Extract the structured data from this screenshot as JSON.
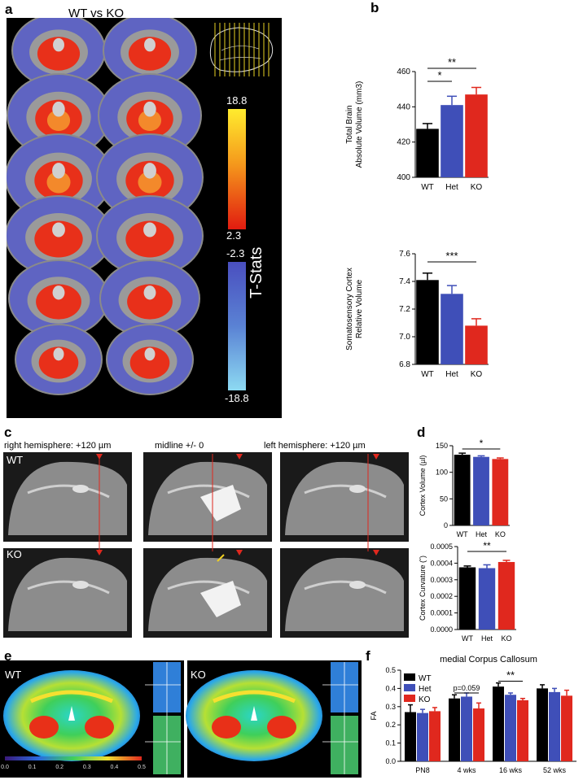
{
  "labels": {
    "a": "a",
    "b": "b",
    "c": "c",
    "d": "d",
    "e": "e",
    "f": "f"
  },
  "panel_a": {
    "title": "WT vs KO",
    "colorbar": {
      "max_pos": "18.8",
      "min_pos": "2.3",
      "max_neg": "-2.3",
      "min_neg": "-18.8",
      "axis_label": "T-Stats"
    },
    "colors": {
      "positive": "#e8301a",
      "negative": "#5a5fc8",
      "high": "#ffe82a",
      "low_neg": "#7fd4f0"
    }
  },
  "panel_c": {
    "col_titles": [
      "right hemisphere: +120 µm",
      "midline +/- 0",
      "left hemisphere: +120 µm"
    ],
    "row_labels": [
      "WT",
      "KO"
    ]
  },
  "panel_e": {
    "left_label": "WT",
    "right_label": "KO",
    "scale_ticks": [
      "0.0",
      "0.1",
      "0.2",
      "0.3",
      "0.4",
      "0.5"
    ]
  },
  "series_colors": {
    "WT": "#000000",
    "Het": "#3f4fb8",
    "KO": "#e0281e"
  },
  "chart_data": [
    {
      "id": "b1",
      "type": "bar",
      "categories": [
        "WT",
        "Het",
        "KO"
      ],
      "values": [
        427.5,
        441,
        447
      ],
      "errors": [
        3,
        5,
        4
      ],
      "ylabel": "Total Brain\nAbsolute Volume (mm3)",
      "ylim": [
        400,
        460
      ],
      "yticks": [
        "400",
        "420",
        "440",
        "460"
      ],
      "annotations": [
        {
          "from": 0,
          "to": 2,
          "text": "**"
        },
        {
          "from": 0,
          "to": 1,
          "text": "*"
        }
      ]
    },
    {
      "id": "b2",
      "type": "bar",
      "categories": [
        "WT",
        "Het",
        "KO"
      ],
      "values": [
        7.41,
        7.31,
        7.08
      ],
      "errors": [
        0.05,
        0.06,
        0.05
      ],
      "ylabel": "Somatosensory Cortex\nRelative Volume",
      "ylim": [
        6.8,
        7.6
      ],
      "yticks": [
        "6.8",
        "7.0",
        "7.2",
        "7.4",
        "7.6"
      ],
      "annotations": [
        {
          "from": 0,
          "to": 2,
          "text": "***"
        }
      ]
    },
    {
      "id": "d1",
      "type": "bar",
      "categories": [
        "WT",
        "Het",
        "KO"
      ],
      "values": [
        133,
        129,
        125
      ],
      "errors": [
        3,
        2,
        2
      ],
      "ylabel": "Cortex Volume (µl)",
      "ylim": [
        0,
        150
      ],
      "yticks": [
        "0",
        "50",
        "100",
        "150"
      ],
      "annotations": [
        {
          "from": 0,
          "to": 2,
          "text": "*"
        }
      ]
    },
    {
      "id": "d2",
      "type": "bar",
      "categories": [
        "WT",
        "Het",
        "KO"
      ],
      "values": [
        0.000375,
        0.00037,
        0.000407
      ],
      "errors": [
        8e-06,
        2e-05,
        1e-05
      ],
      "ylabel": "Cortex Curvature (˘)",
      "ylim": [
        0,
        0.0005
      ],
      "yticks": [
        "0.0000",
        "0.0001",
        "0.0002",
        "0.0003",
        "0.0004",
        "0.0005"
      ],
      "annotations": [
        {
          "from": 0,
          "to": 2,
          "text": "**"
        }
      ]
    },
    {
      "id": "f",
      "type": "bar",
      "title": "medial Corpus Callosum",
      "categories": [
        "PN8",
        "4 wks",
        "16 wks",
        "52 wks"
      ],
      "series": [
        {
          "name": "WT",
          "values": [
            0.27,
            0.345,
            0.41,
            0.4
          ],
          "errors": [
            0.04,
            0.02,
            0.02,
            0.02
          ]
        },
        {
          "name": "Het",
          "values": [
            0.265,
            0.355,
            0.365,
            0.38
          ],
          "errors": [
            0.02,
            0.02,
            0.01,
            0.02
          ]
        },
        {
          "name": "KO",
          "values": [
            0.275,
            0.29,
            0.335,
            0.36
          ],
          "errors": [
            0.02,
            0.03,
            0.01,
            0.03
          ]
        }
      ],
      "ylabel": "FA",
      "ylim": [
        0,
        0.5
      ],
      "yticks": [
        "0.0",
        "0.1",
        "0.2",
        "0.3",
        "0.4",
        "0.5"
      ],
      "legend": "top-left",
      "annotations": [
        {
          "group": 1,
          "text": "p=0.059"
        },
        {
          "group": 2,
          "text": "**"
        }
      ]
    }
  ]
}
